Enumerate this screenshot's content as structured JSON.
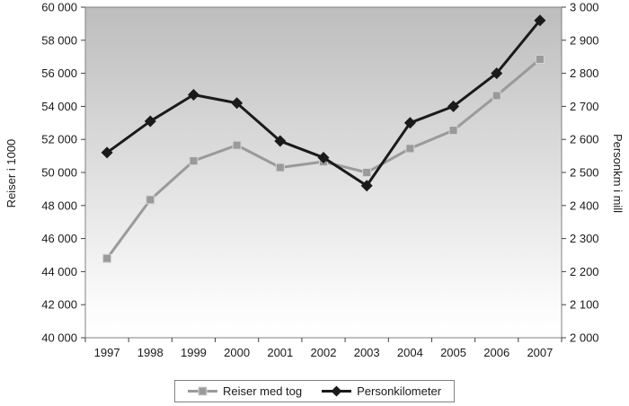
{
  "chart_data": {
    "type": "line",
    "categories": [
      "1997",
      "1998",
      "1999",
      "2000",
      "2001",
      "2002",
      "2003",
      "2004",
      "2005",
      "2006",
      "2007"
    ],
    "series": [
      {
        "name": "Reiser med tog",
        "axis": "left",
        "color": "#9a9a9a",
        "marker": "square",
        "values": [
          44800,
          48350,
          50700,
          51650,
          50300,
          50650,
          50000,
          51450,
          52550,
          54650,
          56850
        ]
      },
      {
        "name": "Personkilometer",
        "axis": "right",
        "color": "#1a1a1a",
        "marker": "diamond",
        "values": [
          2560,
          2655,
          2735,
          2710,
          2595,
          2545,
          2460,
          2650,
          2700,
          2800,
          2960
        ]
      }
    ],
    "left_axis": {
      "label": "Reiser i 1000",
      "min": 40000,
      "max": 60000,
      "step": 2000,
      "tick_labels": [
        "40 000",
        "42 000",
        "44 000",
        "46 000",
        "48 000",
        "50 000",
        "52 000",
        "54 000",
        "56 000",
        "58 000",
        "60 000"
      ]
    },
    "right_axis": {
      "label": "Personkm i mill",
      "min": 2000,
      "max": 3000,
      "step": 100,
      "tick_labels": [
        "2 000",
        "2 100",
        "2 200",
        "2 300",
        "2 400",
        "2 500",
        "2 600",
        "2 700",
        "2 800",
        "2 900",
        "3 000"
      ]
    },
    "legend": {
      "position": "bottom",
      "entries": [
        "Reiser med tog",
        "Personkilometer"
      ]
    },
    "plot_background": {
      "gradient_top": "#bdbdbd",
      "gradient_bottom": "#fbfbfb"
    },
    "grid": "off"
  }
}
